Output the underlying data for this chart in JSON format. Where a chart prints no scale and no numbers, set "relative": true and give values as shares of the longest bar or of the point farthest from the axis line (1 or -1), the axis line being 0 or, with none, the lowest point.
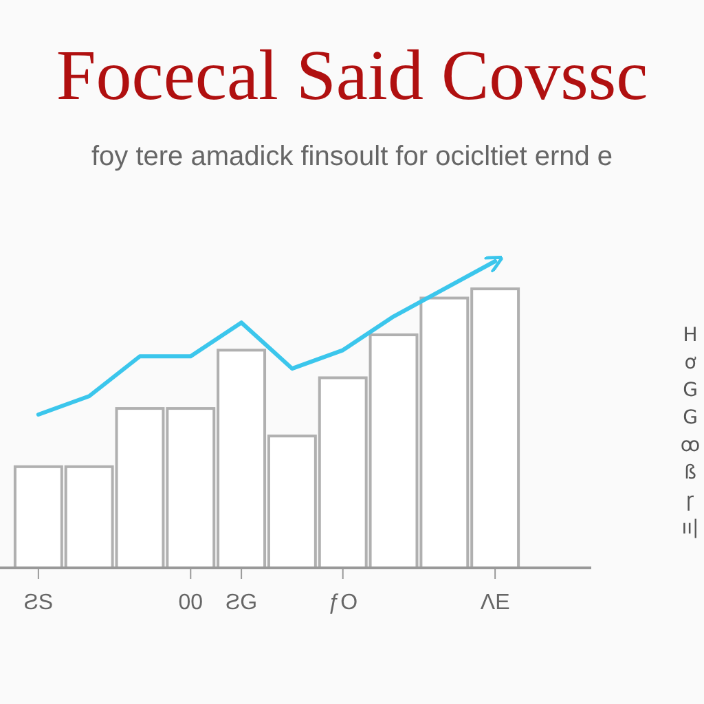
{
  "chart_data": {
    "type": "bar",
    "title": "Focecal Said Covssc",
    "subtitle": "foy tere amadick finsoult for ocicltiet ernd e",
    "relative": true,
    "categories": [
      "ƧS",
      null,
      null,
      "00",
      "ƧG",
      null,
      "ƒO",
      null,
      null,
      "ΛE"
    ],
    "series": [
      {
        "color": "#ffffff",
        "values": [
          0.33,
          0.33,
          0.52,
          0.52,
          0.71,
          0.43,
          0.62,
          0.76,
          0.88,
          0.91
        ]
      },
      {
        "type": "line",
        "color": "#3bc6ec",
        "values": [
          0.5,
          0.56,
          0.69,
          0.69,
          0.8,
          0.65,
          0.71,
          0.82,
          0.91,
          1.0
        ]
      }
    ],
    "annotations": [
      "H",
      "ơ",
      "G",
      "G",
      "ꝏ",
      "ß",
      "ꞅ",
      "ıı|"
    ],
    "grid": false
  }
}
